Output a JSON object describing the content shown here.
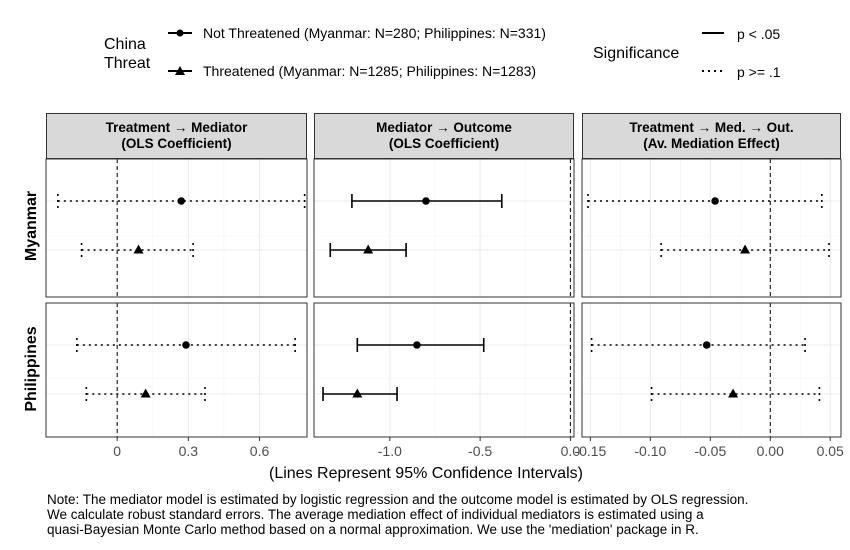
{
  "legend": {
    "color_title": [
      "China",
      "Threat"
    ],
    "items": [
      {
        "shape": "circle",
        "label": "Not Threatened (Myanmar: N=280; Philippines: N=331)"
      },
      {
        "shape": "triangle",
        "label": "Threatened (Myanmar: N=1285; Philippines: N=1283)"
      }
    ],
    "linetype_title": "Significance",
    "linetypes": [
      {
        "style": "solid",
        "label": "p < .05"
      },
      {
        "style": "dotted",
        "label": "p >= .1"
      }
    ]
  },
  "column_strips": [
    [
      "Treatment → Mediator",
      "(OLS Coefficient)"
    ],
    [
      "Mediator → Outcome",
      "(OLS Coefficient)"
    ],
    [
      "Treatment → Med. → Out.",
      "(Av. Mediation Effect)"
    ]
  ],
  "row_strips": [
    "Myanmar",
    "Philippines"
  ],
  "x_axis_label": "(Lines Represent 95% Confidence Intervals)",
  "note": [
    "Note: The mediator model is estimated by logistic regression and the outcome model is estimated by OLS regression.",
    "We calculate robust standard errors. The average mediation effect of individual mediators is estimated using a",
    "quasi-Bayesian Monte Carlo method based on a normal approximation. We use the 'mediation' package in R."
  ],
  "chart_data": {
    "type": "scatter",
    "subtype": "coefficient plot with 95% confidence intervals",
    "panels": [
      {
        "row": "Myanmar",
        "col": "Treatment → Mediator",
        "xlim": [
          -0.3,
          0.8
        ],
        "ticks": [
          0,
          0.3,
          0.6
        ],
        "tick_labels": [
          "0",
          "0.3",
          "0.6"
        ],
        "points": [
          {
            "group": "Not Threatened",
            "estimate": 0.27,
            "ci": [
              -0.25,
              0.79
            ],
            "sig": "p >= .1"
          },
          {
            "group": "Threatened",
            "estimate": 0.09,
            "ci": [
              -0.15,
              0.32
            ],
            "sig": "p >= .1"
          }
        ]
      },
      {
        "row": "Myanmar",
        "col": "Mediator → Outcome",
        "xlim": [
          -1.42,
          0.02
        ],
        "ticks": [
          -1.0,
          -0.5,
          0.0
        ],
        "tick_labels": [
          "-1.0",
          "-0.5",
          "0.0"
        ],
        "points": [
          {
            "group": "Not Threatened",
            "estimate": -0.8,
            "ci": [
              -1.21,
              -0.38
            ],
            "sig": "p < .05"
          },
          {
            "group": "Threatened",
            "estimate": -1.12,
            "ci": [
              -1.33,
              -0.91
            ],
            "sig": "p < .05"
          }
        ]
      },
      {
        "row": "Myanmar",
        "col": "Treatment → Med. → Out.",
        "xlim": [
          -0.157,
          0.059
        ],
        "ticks": [
          -0.15,
          -0.1,
          -0.05,
          0.0,
          0.05
        ],
        "tick_labels": [
          "-0.15",
          "-0.10",
          "-0.05",
          "0.00",
          "0.05"
        ],
        "points": [
          {
            "group": "Not Threatened",
            "estimate": -0.046,
            "ci": [
              -0.152,
              0.043
            ],
            "sig": "p >= .1"
          },
          {
            "group": "Threatened",
            "estimate": -0.021,
            "ci": [
              -0.091,
              0.049
            ],
            "sig": "p >= .1"
          }
        ]
      },
      {
        "row": "Philippines",
        "col": "Treatment → Mediator",
        "xlim": [
          -0.3,
          0.8
        ],
        "ticks": [
          0,
          0.3,
          0.6
        ],
        "tick_labels": [
          "0",
          "0.3",
          "0.6"
        ],
        "points": [
          {
            "group": "Not Threatened",
            "estimate": 0.29,
            "ci": [
              -0.17,
              0.75
            ],
            "sig": "p >= .1"
          },
          {
            "group": "Threatened",
            "estimate": 0.12,
            "ci": [
              -0.13,
              0.37
            ],
            "sig": "p >= .1"
          }
        ]
      },
      {
        "row": "Philippines",
        "col": "Mediator → Outcome",
        "xlim": [
          -1.42,
          0.02
        ],
        "ticks": [
          -1.0,
          -0.5,
          0.0
        ],
        "tick_labels": [
          "-1.0",
          "-0.5",
          "0.0"
        ],
        "points": [
          {
            "group": "Not Threatened",
            "estimate": -0.85,
            "ci": [
              -1.18,
              -0.48
            ],
            "sig": "p < .05"
          },
          {
            "group": "Threatened",
            "estimate": -1.18,
            "ci": [
              -1.37,
              -0.96
            ],
            "sig": "p < .05"
          }
        ]
      },
      {
        "row": "Philippines",
        "col": "Treatment → Med. → Out.",
        "xlim": [
          -0.157,
          0.059
        ],
        "ticks": [
          -0.15,
          -0.1,
          -0.05,
          0.0,
          0.05
        ],
        "tick_labels": [
          "-0.15",
          "-0.10",
          "-0.05",
          "0.00",
          "0.05"
        ],
        "points": [
          {
            "group": "Not Threatened",
            "estimate": -0.053,
            "ci": [
              -0.149,
              0.029
            ],
            "sig": "p >= .1"
          },
          {
            "group": "Threatened",
            "estimate": -0.031,
            "ci": [
              -0.099,
              0.041
            ],
            "sig": "p >= .1"
          }
        ]
      }
    ],
    "reference_line": 0,
    "grid": true
  }
}
